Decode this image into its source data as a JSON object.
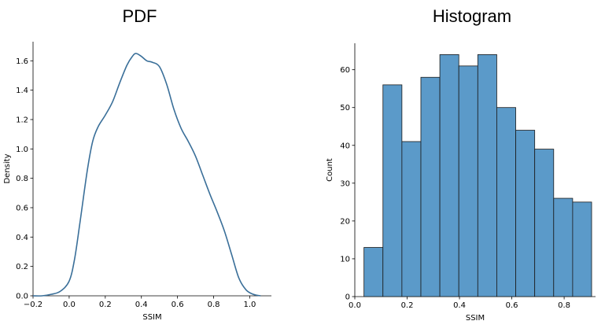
{
  "chart_data": [
    {
      "type": "line",
      "title": "PDF",
      "xlabel": "SSIM",
      "ylabel": "Density",
      "xlim": [
        -0.2,
        1.12
      ],
      "ylim": [
        0.0,
        1.73
      ],
      "xticks": [
        -0.2,
        0.0,
        0.2,
        0.4,
        0.6,
        0.8,
        1.0
      ],
      "xtick_labels": [
        "−0.2",
        "0.0",
        "0.2",
        "0.4",
        "0.6",
        "0.8",
        "1.0"
      ],
      "yticks": [
        0.0,
        0.2,
        0.4,
        0.6,
        0.8,
        1.0,
        1.2,
        1.4,
        1.6
      ],
      "ytick_labels": [
        "0.0",
        "0.2",
        "0.4",
        "0.6",
        "0.8",
        "1.0",
        "1.2",
        "1.4",
        "1.6"
      ],
      "color": "#3a6f99",
      "x": [
        -0.2,
        -0.15,
        -0.1,
        -0.05,
        0.0,
        0.03,
        0.06,
        0.1,
        0.13,
        0.16,
        0.2,
        0.24,
        0.28,
        0.32,
        0.35,
        0.37,
        0.4,
        0.43,
        0.46,
        0.5,
        0.54,
        0.58,
        0.62,
        0.66,
        0.7,
        0.74,
        0.78,
        0.82,
        0.86,
        0.9,
        0.94,
        0.98,
        1.02,
        1.06
      ],
      "y": [
        0.0,
        0.0,
        0.01,
        0.03,
        0.1,
        0.25,
        0.5,
        0.85,
        1.05,
        1.15,
        1.23,
        1.32,
        1.45,
        1.57,
        1.63,
        1.65,
        1.63,
        1.6,
        1.59,
        1.56,
        1.44,
        1.27,
        1.14,
        1.05,
        0.95,
        0.82,
        0.69,
        0.57,
        0.44,
        0.28,
        0.12,
        0.04,
        0.01,
        0.0
      ]
    },
    {
      "type": "bar",
      "title": "Histogram",
      "xlabel": "SSIM",
      "ylabel": "Count",
      "xlim": [
        0.0,
        0.92
      ],
      "ylim": [
        0,
        67
      ],
      "xticks": [
        0.0,
        0.2,
        0.4,
        0.6,
        0.8
      ],
      "xtick_labels": [
        "0.0",
        "0.2",
        "0.4",
        "0.6",
        "0.8"
      ],
      "yticks": [
        0,
        10,
        20,
        30,
        40,
        50,
        60
      ],
      "ytick_labels": [
        "0",
        "10",
        "20",
        "30",
        "40",
        "50",
        "60"
      ],
      "color": "#5b9ac9",
      "edge_color": "#1a1a1a",
      "bin_edges": [
        0.035,
        0.1075,
        0.18,
        0.2525,
        0.325,
        0.3975,
        0.47,
        0.5425,
        0.615,
        0.6875,
        0.76,
        0.8325,
        0.905
      ],
      "values": [
        13,
        56,
        41,
        58,
        64,
        61,
        64,
        50,
        44,
        39,
        26,
        25
      ]
    }
  ]
}
